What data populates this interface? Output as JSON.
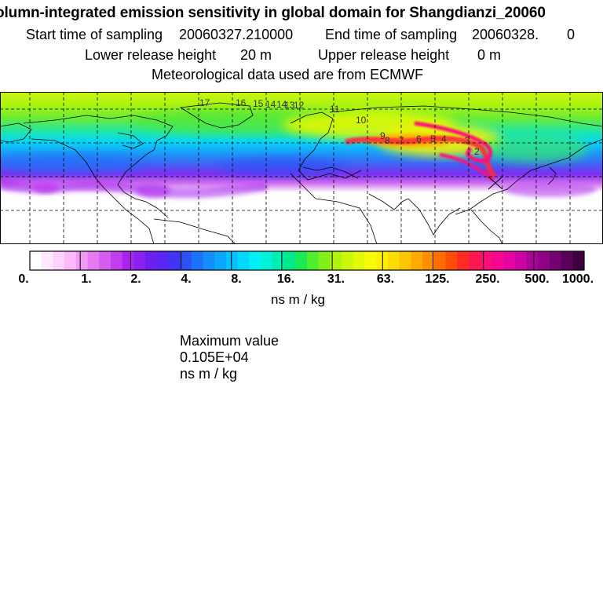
{
  "header": {
    "title": "olumn-integrated emission sensitivity in global domain for Shangdianzi_20060",
    "start_label": "Start time of sampling",
    "start_value": "20060327.210000",
    "end_label": "End time of sampling",
    "end_value": "20060328.",
    "end_value_suffix": "0",
    "lower_label": "Lower release height",
    "lower_value": "20 m",
    "upper_label": "Upper release height",
    "upper_value": "0 m",
    "met_line": "Meteorological data used are from ECMWF"
  },
  "map": {
    "contour_labels": [
      "17",
      "16",
      "15",
      "14",
      "14",
      "13",
      "12",
      "11",
      "10",
      "9",
      "8",
      "7",
      "6",
      "5",
      "4",
      "3",
      "2"
    ]
  },
  "colorbar": {
    "ticks": [
      "0.",
      "1.",
      "2.",
      "4.",
      "8.",
      "16.",
      "31.",
      "63.",
      "125.",
      "250.",
      "500.",
      "1000."
    ],
    "unit": "ns m / kg",
    "colors": [
      "#ffffff",
      "#ffe8ff",
      "#ffd2ff",
      "#fbb8fb",
      "#f09cf4",
      "#e47cf0",
      "#d65cef",
      "#c43cef",
      "#a925ef",
      "#8d20ef",
      "#6e1ff0",
      "#5a25f2",
      "#4035f5",
      "#2b52f7",
      "#1b72fa",
      "#128efc",
      "#0aa7fd",
      "#05c2fe",
      "#00d9fb",
      "#00f0f6",
      "#00f2d9",
      "#00eeb2",
      "#00ea8a",
      "#1bea55",
      "#4eed2e",
      "#83ef1a",
      "#aef40e",
      "#ccf70a",
      "#e4f906",
      "#f6fb05",
      "#fbf001",
      "#fcdb00",
      "#fdc500",
      "#feaa00",
      "#ff8e00",
      "#ff6d00",
      "#ff4c07",
      "#ff2c25",
      "#ff184b",
      "#ff0c78",
      "#f8068f",
      "#e504a2",
      "#cb03a3",
      "#ad0298",
      "#8e0285",
      "#720270",
      "#58015a",
      "#3f0042"
    ]
  },
  "footer": {
    "max_label": "Maximum value",
    "max_value": "0.105E+04",
    "max_unit": "ns m / kg"
  }
}
